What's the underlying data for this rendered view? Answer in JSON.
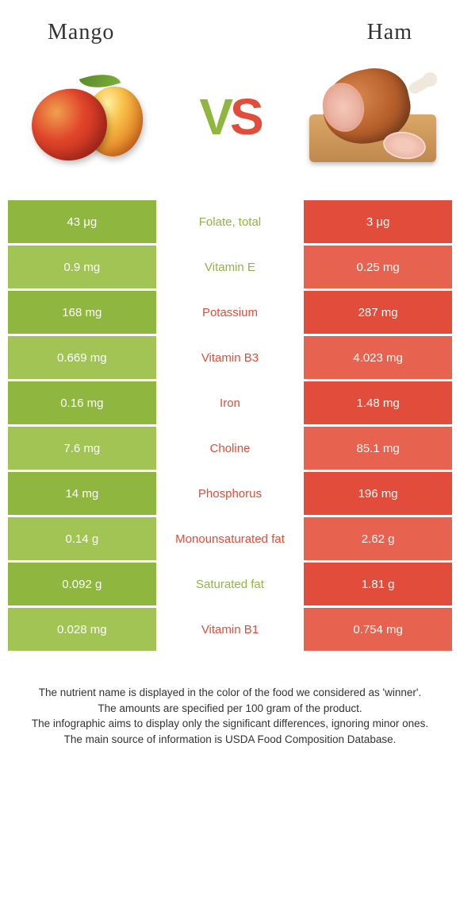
{
  "titles": {
    "left": "Mango",
    "right": "Ham"
  },
  "vs": {
    "v": "V",
    "s": "S"
  },
  "colors": {
    "mango": "#8fb63f",
    "mango_alt": "#a1c455",
    "ham": "#e24c3a",
    "ham_alt": "#e8634f"
  },
  "rows": [
    {
      "left": "43 μg",
      "label": "Folate, total",
      "right": "3 μg",
      "winner": "mango"
    },
    {
      "left": "0.9 mg",
      "label": "Vitamin E",
      "right": "0.25 mg",
      "winner": "mango"
    },
    {
      "left": "168 mg",
      "label": "Potassium",
      "right": "287 mg",
      "winner": "ham"
    },
    {
      "left": "0.669 mg",
      "label": "Vitamin B3",
      "right": "4.023 mg",
      "winner": "ham"
    },
    {
      "left": "0.16 mg",
      "label": "Iron",
      "right": "1.48 mg",
      "winner": "ham"
    },
    {
      "left": "7.6 mg",
      "label": "Choline",
      "right": "85.1 mg",
      "winner": "ham"
    },
    {
      "left": "14 mg",
      "label": "Phosphorus",
      "right": "196 mg",
      "winner": "ham"
    },
    {
      "left": "0.14 g",
      "label": "Monounsaturated fat",
      "right": "2.62 g",
      "winner": "ham"
    },
    {
      "left": "0.092 g",
      "label": "Saturated fat",
      "right": "1.81 g",
      "winner": "mango"
    },
    {
      "left": "0.028 mg",
      "label": "Vitamin B1",
      "right": "0.754 mg",
      "winner": "ham"
    }
  ],
  "footer": [
    "The nutrient name is displayed in the color of the food we considered as 'winner'.",
    "The amounts are specified per 100 gram of the product.",
    "The infographic aims to display only the significant differences, ignoring minor ones.",
    "The main source of information is USDA Food Composition Database."
  ]
}
